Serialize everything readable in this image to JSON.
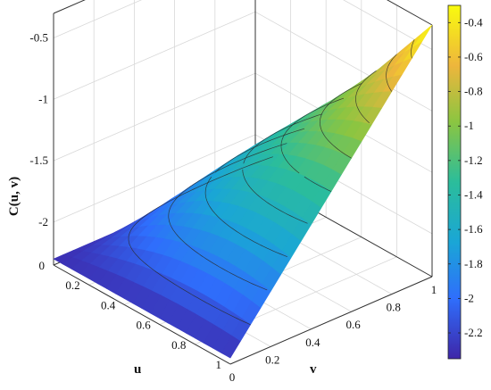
{
  "chart_data": {
    "type": "surface3d",
    "title": "",
    "xlabel": "u",
    "ylabel": "v",
    "zlabel": "C(u, v)",
    "x_range": [
      0,
      1
    ],
    "y_range": [
      0,
      1
    ],
    "z_range": [
      -2.35,
      -0.3
    ],
    "x_ticks": [
      "0",
      "0.2",
      "0.4",
      "0.6",
      "0.8",
      "1"
    ],
    "y_ticks": [
      "0",
      "0.2",
      "0.4",
      "0.6",
      "0.8",
      "1"
    ],
    "z_ticks": [
      "-2",
      "-1.5",
      "-1",
      "-0.5"
    ],
    "grid": true,
    "colormap": "parula",
    "colormap_stops": [
      "#3e26a8",
      "#2f6efc",
      "#1aa6d6",
      "#2bbd9b",
      "#8bc541",
      "#eeb63c",
      "#f9fb0e"
    ],
    "colorbar": {
      "range": [
        -2.35,
        -0.3
      ],
      "ticks": [
        "-0.4",
        "-0.6",
        "-0.8",
        "-1",
        "-1.2",
        "-1.4",
        "-1.6",
        "-1.8",
        "-2",
        "-2.2"
      ]
    },
    "surface": {
      "grid_points_per_axis": 21,
      "z_at_u0_v0": -2.3,
      "z_at_u0_v1": -2.3,
      "z_at_u1_v0": -2.3,
      "z_at_u1_v1": -0.3,
      "z_at_center": -1.5,
      "contour_levels": [
        -2.1,
        -1.9,
        -1.7,
        -1.5,
        -1.3,
        -1.1,
        -0.9,
        -0.7,
        -0.5
      ]
    }
  }
}
